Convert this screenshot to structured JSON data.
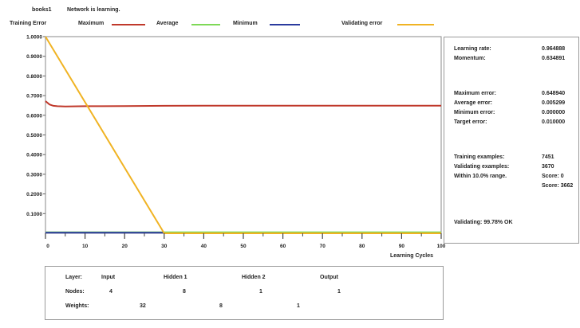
{
  "header": {
    "file_name": "books1",
    "status": "Network is learning."
  },
  "legend": {
    "title": "Training Error",
    "items": [
      {
        "label": "Maximum",
        "color": "#c0392b"
      },
      {
        "label": "Average",
        "color": "#7ed957"
      },
      {
        "label": "Minimum",
        "color": "#2a3a9e"
      },
      {
        "label": "Validating error",
        "color": "#f0b323"
      }
    ]
  },
  "chart_data": {
    "type": "line",
    "title": "Training Error",
    "xlabel": "Learning Cycles",
    "ylabel": "",
    "xlim": [
      0,
      100
    ],
    "ylim": [
      0,
      1
    ],
    "x_ticks": [
      "0",
      "10",
      "20",
      "30",
      "40",
      "50",
      "60",
      "70",
      "80",
      "90",
      "100"
    ],
    "y_ticks": [
      "1.0000",
      "0.9000",
      "0.8000",
      "0.7000",
      "0.6000",
      "0.5000",
      "0.4000",
      "0.3000",
      "0.2000",
      "0.1000"
    ],
    "series": [
      {
        "name": "Maximum",
        "color": "#c0392b",
        "x": [
          0,
          1,
          2,
          3,
          5,
          10,
          20,
          30,
          40,
          50,
          60,
          70,
          80,
          90,
          100
        ],
        "y": [
          0.672,
          0.655,
          0.648,
          0.646,
          0.645,
          0.646,
          0.647,
          0.648,
          0.649,
          0.649,
          0.649,
          0.649,
          0.649,
          0.649,
          0.649
        ]
      },
      {
        "name": "Average",
        "color": "#7ed957",
        "x": [
          0,
          100
        ],
        "y": [
          0.005,
          0.005
        ]
      },
      {
        "name": "Minimum",
        "color": "#2a3a9e",
        "x": [
          0,
          30
        ],
        "y": [
          0.003,
          0.003
        ]
      },
      {
        "name": "Validating error",
        "color": "#f0b323",
        "x": [
          0,
          30,
          100
        ],
        "y": [
          1.0,
          0.0,
          0.0
        ]
      }
    ]
  },
  "stats": {
    "learning_rate_label": "Learning rate:",
    "learning_rate": "0.964888",
    "momentum_label": "Momentum:",
    "momentum": "0.634891",
    "max_error_label": "Maximum error:",
    "max_error": "0.648940",
    "avg_error_label": "Average error:",
    "avg_error": "0.005299",
    "min_error_label": "Minimum error:",
    "min_error": "0.000000",
    "target_error_label": "Target error:",
    "target_error": "0.010000",
    "training_examples_label": "Training examples:",
    "training_examples": "7451",
    "validating_examples_label": "Validating examples:",
    "validating_examples": "3670",
    "within_range_label": "Within 10.0% range.",
    "score_1": "Score: 0",
    "score_2": "Score: 3662",
    "validating_status": "Validating: 99.78% OK"
  },
  "network": {
    "layer_label": "Layer:",
    "nodes_label": "Nodes:",
    "weights_label": "Weights:",
    "layers": [
      {
        "name": "Input",
        "nodes": "4"
      },
      {
        "name": "Hidden 1",
        "nodes": "8"
      },
      {
        "name": "Hidden 2",
        "nodes": "1"
      },
      {
        "name": "Output",
        "nodes": "1"
      }
    ],
    "weights": [
      "32",
      "8",
      "1"
    ]
  }
}
